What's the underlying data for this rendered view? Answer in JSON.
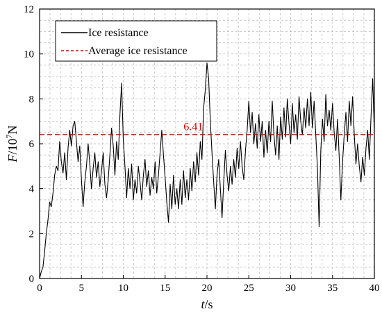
{
  "chart_data": {
    "type": "line",
    "x_axis": {
      "label_italic": "t",
      "label_rest": "/s",
      "range": [
        0,
        40
      ],
      "ticks": [
        0,
        5,
        10,
        15,
        20,
        25,
        30,
        35,
        40
      ]
    },
    "y_axis": {
      "label_italic": "F",
      "label_mid": "/10",
      "label_sup": "7",
      "label_rest": "N",
      "range": [
        0,
        12
      ],
      "ticks": [
        0,
        2,
        4,
        6,
        8,
        10,
        12
      ]
    },
    "grid": true,
    "grid_color": "#bdbdbd",
    "legend": {
      "position": "top-left",
      "entries": [
        {
          "label": "Ice resistance",
          "color": "#000000",
          "style": "solid"
        },
        {
          "label": "Average ice resistance",
          "color": "#e00000",
          "style": "dashed"
        }
      ]
    },
    "series": [
      {
        "name": "Ice resistance",
        "color": "#000000",
        "points": [
          [
            0,
            0
          ],
          [
            0.2,
            0.3
          ],
          [
            0.4,
            0.5
          ],
          [
            0.6,
            1.2
          ],
          [
            0.8,
            2.0
          ],
          [
            1.0,
            2.6
          ],
          [
            1.2,
            3.4
          ],
          [
            1.4,
            3.2
          ],
          [
            1.6,
            3.8
          ],
          [
            1.8,
            4.6
          ],
          [
            2.0,
            5.0
          ],
          [
            2.2,
            4.8
          ],
          [
            2.4,
            6.1
          ],
          [
            2.6,
            5.2
          ],
          [
            2.8,
            4.7
          ],
          [
            3.0,
            5.6
          ],
          [
            3.2,
            4.4
          ],
          [
            3.4,
            5.8
          ],
          [
            3.6,
            6.6
          ],
          [
            3.8,
            5.9
          ],
          [
            4.0,
            6.8
          ],
          [
            4.2,
            7.0
          ],
          [
            4.4,
            6.1
          ],
          [
            4.6,
            5.2
          ],
          [
            4.8,
            5.9
          ],
          [
            5.0,
            4.4
          ],
          [
            5.2,
            3.2
          ],
          [
            5.4,
            4.3
          ],
          [
            5.6,
            5.0
          ],
          [
            5.8,
            6.0
          ],
          [
            6.0,
            5.1
          ],
          [
            6.2,
            4.0
          ],
          [
            6.4,
            4.9
          ],
          [
            6.6,
            5.6
          ],
          [
            6.8,
            4.5
          ],
          [
            7.0,
            5.2
          ],
          [
            7.2,
            4.1
          ],
          [
            7.4,
            4.8
          ],
          [
            7.6,
            5.6
          ],
          [
            7.8,
            4.2
          ],
          [
            8.0,
            3.6
          ],
          [
            8.2,
            4.4
          ],
          [
            8.4,
            5.5
          ],
          [
            8.6,
            6.7
          ],
          [
            8.8,
            5.9
          ],
          [
            9.0,
            4.6
          ],
          [
            9.2,
            6.1
          ],
          [
            9.4,
            5.3
          ],
          [
            9.6,
            7.3
          ],
          [
            9.8,
            8.7
          ],
          [
            10.0,
            6.2
          ],
          [
            10.2,
            5.0
          ],
          [
            10.4,
            3.6
          ],
          [
            10.6,
            4.9
          ],
          [
            10.8,
            4.0
          ],
          [
            11.0,
            5.1
          ],
          [
            11.2,
            3.5
          ],
          [
            11.4,
            4.4
          ],
          [
            11.6,
            3.8
          ],
          [
            11.8,
            5.0
          ],
          [
            12.0,
            4.3
          ],
          [
            12.2,
            3.5
          ],
          [
            12.4,
            4.6
          ],
          [
            12.6,
            5.3
          ],
          [
            12.8,
            4.1
          ],
          [
            13.0,
            4.8
          ],
          [
            13.2,
            3.7
          ],
          [
            13.4,
            4.5
          ],
          [
            13.6,
            4.0
          ],
          [
            13.8,
            5.2
          ],
          [
            14.0,
            3.8
          ],
          [
            14.2,
            4.6
          ],
          [
            14.4,
            5.6
          ],
          [
            14.6,
            6.6
          ],
          [
            14.8,
            5.5
          ],
          [
            15.0,
            4.5
          ],
          [
            15.2,
            3.4
          ],
          [
            15.4,
            2.5
          ],
          [
            15.6,
            4.2
          ],
          [
            15.8,
            3.1
          ],
          [
            16.0,
            4.6
          ],
          [
            16.2,
            3.3
          ],
          [
            16.4,
            4.0
          ],
          [
            16.6,
            3.1
          ],
          [
            16.8,
            4.4
          ],
          [
            17.0,
            3.3
          ],
          [
            17.2,
            4.8
          ],
          [
            17.4,
            3.6
          ],
          [
            17.6,
            4.4
          ],
          [
            17.8,
            3.5
          ],
          [
            18.0,
            4.9
          ],
          [
            18.2,
            3.9
          ],
          [
            18.4,
            5.2
          ],
          [
            18.6,
            4.3
          ],
          [
            18.8,
            5.6
          ],
          [
            19.0,
            4.6
          ],
          [
            19.2,
            6.1
          ],
          [
            19.4,
            5.3
          ],
          [
            19.6,
            7.6
          ],
          [
            19.8,
            8.4
          ],
          [
            20.0,
            9.6
          ],
          [
            20.2,
            8.9
          ],
          [
            20.4,
            7.0
          ],
          [
            20.6,
            5.6
          ],
          [
            20.8,
            4.3
          ],
          [
            21.0,
            3.1
          ],
          [
            21.2,
            4.6
          ],
          [
            21.4,
            5.3
          ],
          [
            21.6,
            4.0
          ],
          [
            21.8,
            2.7
          ],
          [
            22.0,
            4.3
          ],
          [
            22.2,
            5.7
          ],
          [
            22.4,
            4.6
          ],
          [
            22.6,
            3.9
          ],
          [
            22.8,
            5.0
          ],
          [
            23.0,
            4.2
          ],
          [
            23.2,
            5.3
          ],
          [
            23.4,
            4.5
          ],
          [
            23.6,
            5.8
          ],
          [
            23.8,
            4.9
          ],
          [
            24.0,
            6.1
          ],
          [
            24.2,
            5.0
          ],
          [
            24.4,
            4.4
          ],
          [
            24.6,
            5.7
          ],
          [
            24.8,
            6.6
          ],
          [
            25.0,
            7.9
          ],
          [
            25.2,
            6.5
          ],
          [
            25.4,
            7.4
          ],
          [
            25.6,
            6.0
          ],
          [
            25.8,
            6.9
          ],
          [
            26.0,
            5.8
          ],
          [
            26.2,
            7.3
          ],
          [
            26.4,
            6.1
          ],
          [
            26.6,
            7.0
          ],
          [
            26.8,
            5.4
          ],
          [
            27.0,
            6.6
          ],
          [
            27.2,
            5.6
          ],
          [
            27.4,
            7.0
          ],
          [
            27.6,
            6.1
          ],
          [
            27.8,
            7.9
          ],
          [
            28.0,
            6.4
          ],
          [
            28.2,
            5.5
          ],
          [
            28.4,
            6.8
          ],
          [
            28.6,
            5.3
          ],
          [
            28.8,
            7.2
          ],
          [
            29.0,
            6.2
          ],
          [
            29.2,
            7.6
          ],
          [
            29.4,
            6.3
          ],
          [
            29.6,
            8.0
          ],
          [
            29.8,
            6.9
          ],
          [
            30.0,
            6.0
          ],
          [
            30.2,
            7.8
          ],
          [
            30.4,
            6.5
          ],
          [
            30.6,
            7.3
          ],
          [
            30.8,
            6.2
          ],
          [
            31.0,
            8.1
          ],
          [
            31.2,
            7.0
          ],
          [
            31.4,
            6.4
          ],
          [
            31.6,
            7.6
          ],
          [
            31.8,
            6.7
          ],
          [
            32.0,
            8.0
          ],
          [
            32.2,
            6.8
          ],
          [
            32.4,
            8.3
          ],
          [
            32.6,
            6.7
          ],
          [
            32.8,
            7.9
          ],
          [
            33.0,
            6.4
          ],
          [
            33.2,
            4.9
          ],
          [
            33.4,
            2.3
          ],
          [
            33.6,
            5.7
          ],
          [
            33.8,
            7.1
          ],
          [
            34.0,
            6.1
          ],
          [
            34.2,
            8.2
          ],
          [
            34.4,
            6.8
          ],
          [
            34.6,
            7.5
          ],
          [
            34.8,
            6.6
          ],
          [
            35.0,
            7.8
          ],
          [
            35.2,
            6.5
          ],
          [
            35.4,
            5.7
          ],
          [
            35.6,
            7.1
          ],
          [
            35.8,
            5.4
          ],
          [
            36.0,
            3.5
          ],
          [
            36.2,
            5.2
          ],
          [
            36.4,
            6.4
          ],
          [
            36.6,
            7.4
          ],
          [
            36.8,
            6.1
          ],
          [
            37.0,
            7.9
          ],
          [
            37.2,
            6.8
          ],
          [
            37.4,
            8.1
          ],
          [
            37.6,
            6.4
          ],
          [
            37.8,
            5.1
          ],
          [
            38.0,
            6.0
          ],
          [
            38.2,
            5.0
          ],
          [
            38.4,
            4.3
          ],
          [
            38.6,
            5.4
          ],
          [
            38.8,
            4.6
          ],
          [
            39.0,
            5.8
          ],
          [
            39.2,
            6.6
          ],
          [
            39.4,
            5.3
          ],
          [
            39.6,
            7.2
          ],
          [
            39.8,
            8.9
          ],
          [
            40.0,
            6.5
          ]
        ]
      }
    ],
    "reference_lines": [
      {
        "name": "Average ice resistance",
        "y": 6.41,
        "color": "#e00000",
        "style": "dashed",
        "annotation": "6.41",
        "annotation_x": 17.2
      }
    ]
  }
}
